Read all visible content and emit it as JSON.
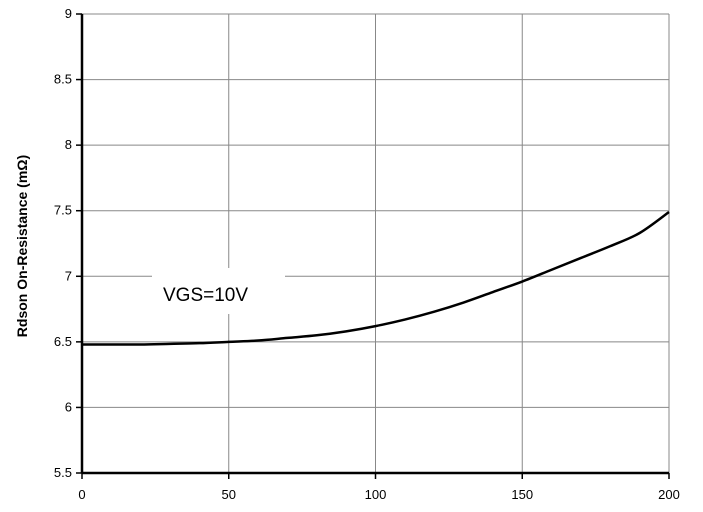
{
  "chart_data": {
    "type": "line",
    "title": "",
    "xlabel": "",
    "ylabel": "Rdson On-Resistance (mΩ)",
    "xlim": [
      0,
      200
    ],
    "ylim": [
      5.5,
      9
    ],
    "x_ticks": [
      "0",
      "50",
      "100",
      "150",
      "200"
    ],
    "y_ticks": [
      "5.5",
      "6",
      "6.5",
      "7",
      "7.5",
      "8",
      "8.5",
      "9"
    ],
    "grid": true,
    "annotation": "VGS=10V",
    "series": [
      {
        "x": [
          0,
          10,
          20,
          30,
          40,
          50,
          60,
          70,
          80,
          90,
          100,
          110,
          120,
          130,
          140,
          150,
          160,
          170,
          180,
          190,
          200
        ],
        "y": [
          6.48,
          6.48,
          6.48,
          6.485,
          6.49,
          6.5,
          6.51,
          6.53,
          6.55,
          6.58,
          6.62,
          6.67,
          6.73,
          6.8,
          6.88,
          6.96,
          7.05,
          7.14,
          7.23,
          7.33,
          7.49
        ],
        "color": "#000000"
      }
    ]
  }
}
